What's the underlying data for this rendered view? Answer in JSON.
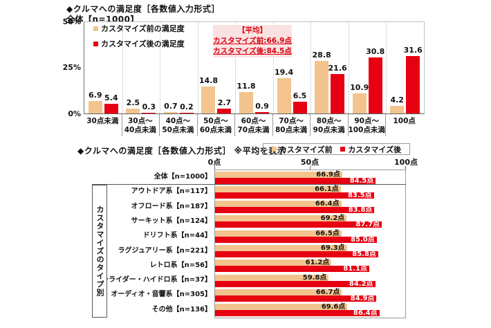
{
  "colors": {
    "before": "#F3C48E",
    "after": "#E60012",
    "avg_box_bg": "#FBE2E2",
    "avg_text": "#D7000F"
  },
  "top_chart": {
    "title": "◆クルマへの満足度［各数値入力形式］",
    "subtitle": "全体【n=1000】",
    "y_ticks": [
      "50%",
      "25%",
      "0%"
    ],
    "legend": [
      {
        "label": "カスタマイズ前の満足度"
      },
      {
        "label": "カスタマイズ後の満足度"
      }
    ],
    "average_box": {
      "heading": "【平均】",
      "lines": [
        "カスタマイズ前:66.9点",
        "カスタマイズ後:84.5点"
      ]
    }
  },
  "bottom_chart": {
    "title": "◆クルマへの満足度［各数値入力形式］ ※平均を表示",
    "legend": [
      {
        "label": "カスタマイズ前"
      },
      {
        "label": "カスタマイズ後"
      }
    ],
    "x_ticks": [
      "0点",
      "50点",
      "100点"
    ],
    "group_label": "カスタマイズのタイプ別",
    "unit_suffix": "点"
  },
  "chart_data": [
    {
      "type": "bar",
      "title": "クルマへの満足度［各数値入力形式］ 全体【n=1000】",
      "categories": [
        [
          "30点未満"
        ],
        [
          "30点～",
          "40点未満"
        ],
        [
          "40点～",
          "50点未満"
        ],
        [
          "50点～",
          "60点未満"
        ],
        [
          "60点～",
          "70点未満"
        ],
        [
          "70点～",
          "80点未満"
        ],
        [
          "80点～",
          "90点未満"
        ],
        [
          "90点～",
          "100点未満"
        ],
        [
          "100点"
        ]
      ],
      "series": [
        {
          "name": "カスタマイズ前の満足度",
          "values": [
            6.9,
            2.5,
            0.7,
            14.8,
            11.8,
            19.4,
            28.8,
            10.9,
            4.2
          ]
        },
        {
          "name": "カスタマイズ後の満足度",
          "values": [
            5.4,
            0.3,
            0.2,
            2.7,
            0.9,
            6.5,
            21.6,
            30.8,
            31.6
          ]
        }
      ],
      "ylabel": "%",
      "ylim": [
        0,
        50
      ],
      "averages": {
        "before": 66.9,
        "after": 84.5
      },
      "legend_position": "top-left",
      "grid": "vertical-separators"
    },
    {
      "type": "bar",
      "orientation": "horizontal",
      "title": "クルマへの満足度［各数値入力形式］ 平均を表示",
      "categories": [
        "全体【n=1000】",
        "アウトドア系【n=117】",
        "オフロード系【n=187】",
        "サーキット系【n=124】",
        "ドリフト系【n=44】",
        "ラグジュアリー系【n=221】",
        "レトロ系【n=56】",
        "ローライダー・ハイドロ系【n=37】",
        "オーディオ・音響系【n=305】",
        "その他【n=136】"
      ],
      "series": [
        {
          "name": "カスタマイズ前",
          "values": [
            66.9,
            66.1,
            66.4,
            69.2,
            66.5,
            69.3,
            61.2,
            59.8,
            66.7,
            69.6
          ]
        },
        {
          "name": "カスタマイズ後",
          "values": [
            84.5,
            83.5,
            83.8,
            87.7,
            85.0,
            85.8,
            81.1,
            84.2,
            84.9,
            86.4
          ]
        }
      ],
      "xlim": [
        0,
        100
      ],
      "value_suffix": "点",
      "legend_position": "top-right",
      "grid": "off"
    }
  ]
}
